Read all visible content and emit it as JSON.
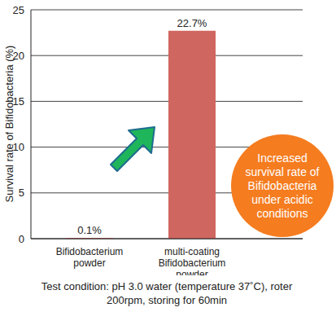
{
  "chart_data": {
    "type": "bar",
    "categories": [
      "Bifidobacterium powder",
      "multi-coating Bifidobacterium powder"
    ],
    "values": [
      0.1,
      22.7
    ],
    "value_labels": [
      "0.1%",
      "22.7%"
    ],
    "data_labels": true,
    "color": "#cf6760",
    "ylim": [
      0,
      25
    ],
    "yticks": [
      0,
      5,
      10,
      15,
      20,
      25
    ],
    "grid": true,
    "ylabel": "Survival rate of Bifidobacteria (%)",
    "annotation": "Increased survival rate of Bifidobacteria under acidic conditions",
    "caption": "Test condition: pH 3.0 water (temperature 37˚C), roter 200rpm, storing for 60min"
  }
}
